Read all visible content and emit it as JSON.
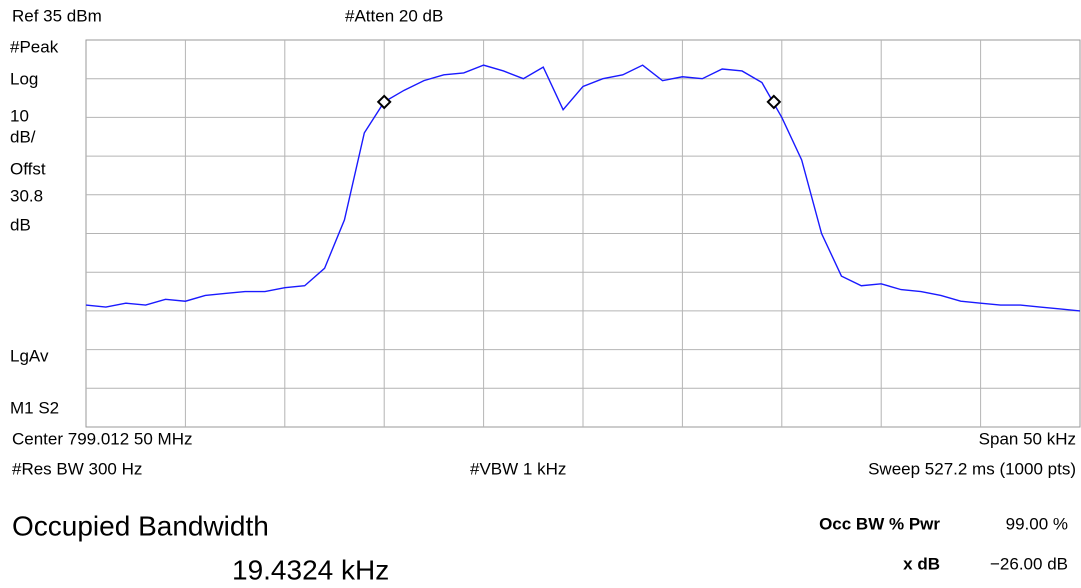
{
  "header": {
    "ref": "Ref 35 dBm",
    "atten": "#Atten 20 dB"
  },
  "side_labels": [
    "#Peak",
    "Log",
    "10",
    "dB/",
    "Offst",
    "30.8",
    "dB",
    "LgAv",
    "M1  S2"
  ],
  "footer": {
    "center": "Center 799.012 50 MHz",
    "span": "Span 50 kHz",
    "rbw": "#Res BW 300 Hz",
    "vbw": "#VBW 1 kHz",
    "sweep": "Sweep 527.2 ms (1000 pts)"
  },
  "result": {
    "title": "Occupied Bandwidth",
    "value": "19.4324 kHz",
    "occ_label": "Occ BW % Pwr",
    "occ_value": "99.00 %",
    "xdb_label": "x dB",
    "xdb_value": "−26.00 dB"
  },
  "chart_data": {
    "type": "line",
    "xlim": [
      798.9875,
      799.0375
    ],
    "ylim": [
      -65,
      35
    ],
    "x": [
      798.9875,
      798.9885,
      798.9895,
      798.9905,
      798.9915,
      798.9925,
      798.9935,
      798.9945,
      798.9955,
      798.9965,
      798.9975,
      798.9985,
      798.9995,
      799.0005,
      799.0015,
      799.0025,
      799.0035,
      799.0045,
      799.0055,
      799.0065,
      799.0075,
      799.0085,
      799.0095,
      799.0105,
      799.0115,
      799.0125,
      799.0135,
      799.0145,
      799.0155,
      799.0165,
      799.0175,
      799.0185,
      799.0195,
      799.0205,
      799.0215,
      799.0225,
      799.0235,
      799.0245,
      799.0255,
      799.0265,
      799.0275,
      799.0285,
      799.0295,
      799.0305,
      799.0315,
      799.0325,
      799.0335,
      799.0345,
      799.0355,
      799.0365,
      799.0375
    ],
    "series": [
      {
        "color": "#1a1aff",
        "values": [
          -33.5,
          -34,
          -33,
          -33.5,
          -32,
          -32.5,
          -31,
          -30.5,
          -30,
          -30,
          -29,
          -28.5,
          -24,
          -11.5,
          11,
          19,
          22,
          24.5,
          26,
          26.5,
          28.5,
          27,
          25,
          28,
          17,
          23,
          25,
          26,
          28.5,
          24.5,
          25.5,
          25,
          27.5,
          27,
          24,
          15,
          4,
          -15,
          -26,
          -28.5,
          -28,
          -29.5,
          -30,
          -31,
          -32.5,
          -33,
          -33.5,
          -33.5,
          -34,
          -34.5,
          -35
        ]
      }
    ],
    "markers": {
      "x": [
        799.0025,
        799.0221
      ],
      "values": [
        19,
        19
      ]
    }
  }
}
